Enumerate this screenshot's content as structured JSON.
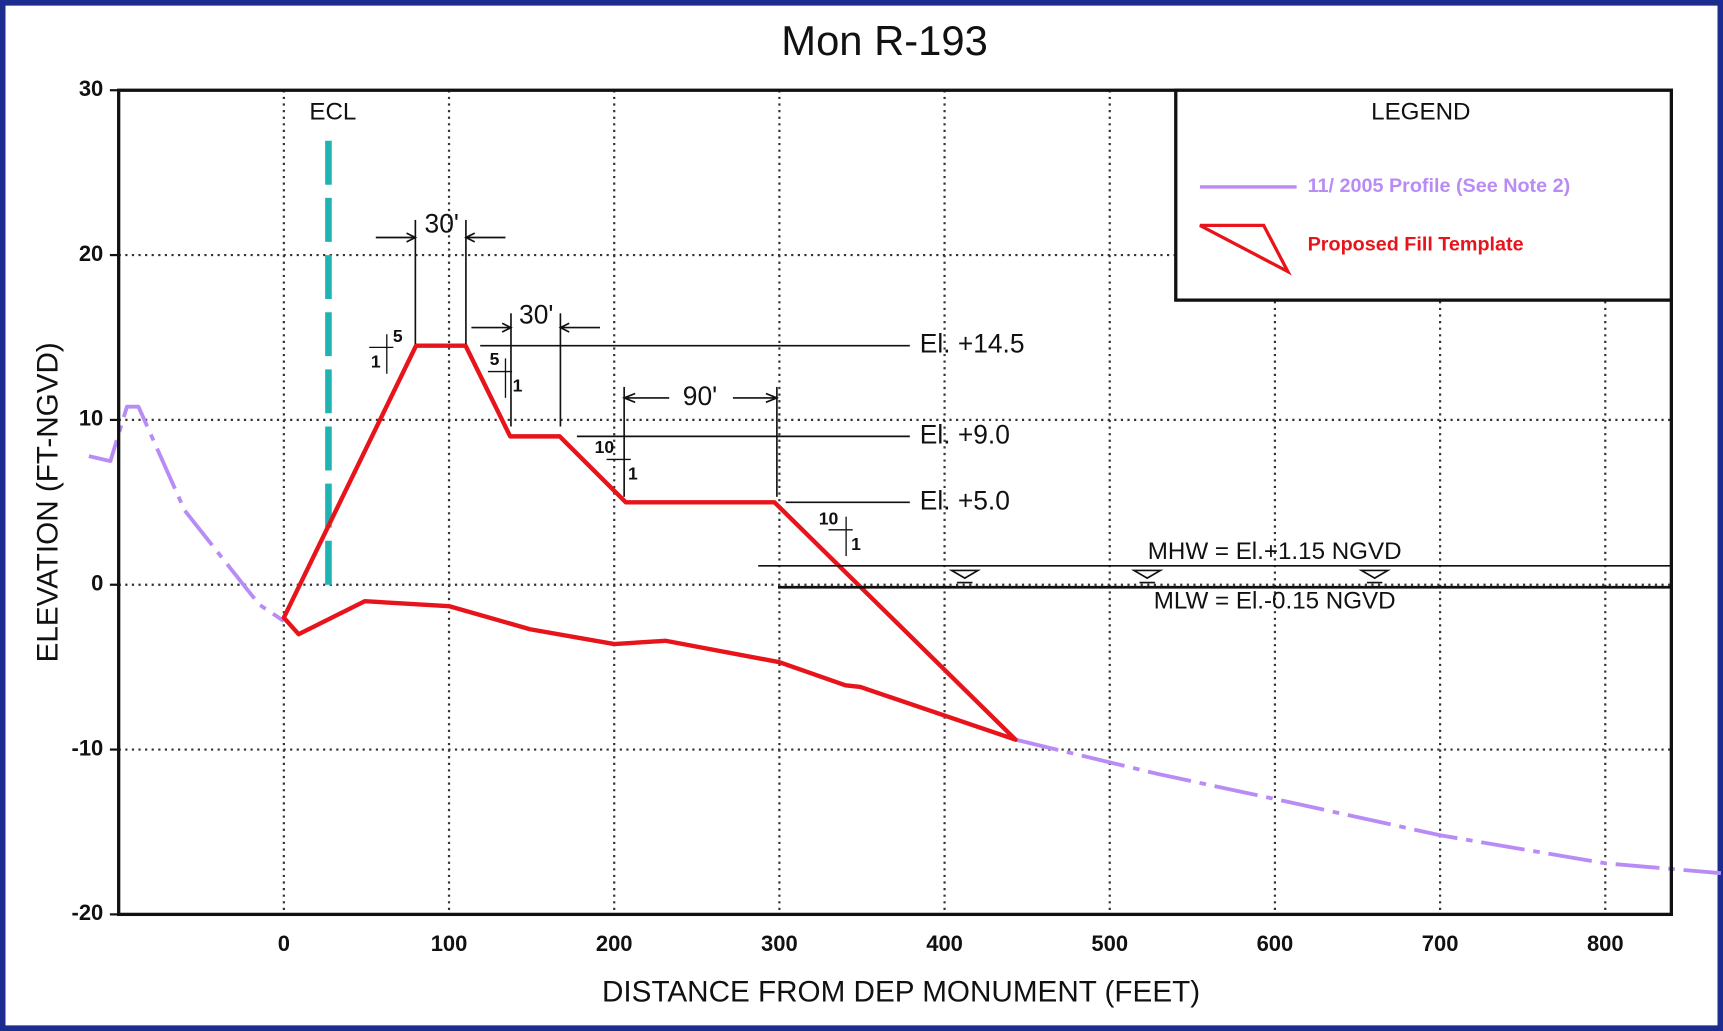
{
  "chart_data": {
    "type": "line",
    "title": "Mon R-193",
    "xlabel": "DISTANCE FROM DEP MONUMENT (FEET)",
    "ylabel": "ELEVATION (FT-NGVD)",
    "xlim": [
      -100,
      840
    ],
    "ylim": [
      -20,
      30
    ],
    "xticks": [
      0,
      100,
      200,
      300,
      400,
      500,
      600,
      700,
      800
    ],
    "yticks": [
      -20,
      -10,
      0,
      10,
      20,
      30
    ],
    "grid": true,
    "legend_title": "LEGEND",
    "legend_position": "upper right",
    "series": [
      {
        "name": "11/ 2005 Profile (See Note 2)",
        "color": "#b98cf5",
        "style": "dashdot",
        "x": [
          -118,
          -105,
          -95,
          -88,
          -60,
          -15,
          0,
          null,
          443,
          530,
          600,
          700,
          800,
          870
        ],
        "values": [
          7.8,
          7.5,
          10.8,
          10.8,
          4.5,
          -1.2,
          -2.2,
          null,
          -9.4,
          -11.5,
          -13,
          -15.2,
          -16.9,
          -17.5
        ]
      },
      {
        "name": "Proposed Fill Template",
        "color": "#e8141c",
        "style": "polygon",
        "x": [
          0,
          80,
          110,
          137,
          167,
          207,
          297,
          443,
          349,
          340,
          300,
          231,
          200,
          149,
          100,
          49,
          9,
          0
        ],
        "values": [
          -2,
          14.5,
          14.5,
          9.0,
          9.0,
          5.0,
          5.0,
          -9.4,
          -6.2,
          -6.1,
          -4.7,
          -3.4,
          -3.6,
          -2.7,
          -1.3,
          -1.0,
          -3.0,
          -2
        ]
      }
    ],
    "ecl": {
      "label": "ECL",
      "x": 27,
      "ylim": [
        0,
        27
      ],
      "color": "#1fb3b3"
    },
    "elevations": [
      {
        "label": "El. +14.5",
        "y": 14.5
      },
      {
        "label": "El. +9.0",
        "y": 9.0
      },
      {
        "label": "El. +5.0",
        "y": 5.0
      }
    ],
    "water_levels": [
      {
        "label": "MHW = El.+1.15 NGVD",
        "y": 1.15
      },
      {
        "label": "MLW = El.-0.15 NGVD",
        "y": -0.15
      }
    ],
    "dimensions": [
      "30'",
      "30'",
      "90'"
    ],
    "slopes": [
      [
        5,
        1
      ],
      [
        5,
        1
      ],
      [
        10,
        1
      ],
      [
        10,
        1
      ]
    ]
  }
}
